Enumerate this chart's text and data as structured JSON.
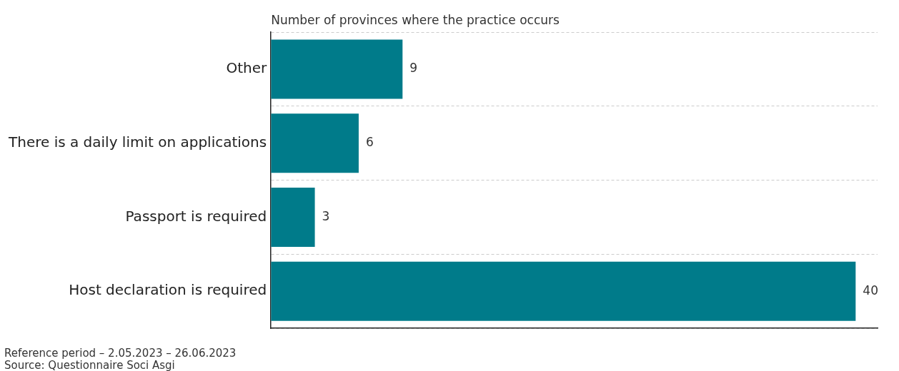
{
  "chart_data": {
    "type": "bar",
    "orientation": "horizontal",
    "title": "Number of provinces where the practice occurs",
    "categories": [
      "Other",
      "There is a daily limit on applications",
      "Passport is required",
      "Host declaration is required"
    ],
    "values": [
      9,
      6,
      3,
      40
    ],
    "color": "#007b8a",
    "xlim": [
      0,
      41.5
    ],
    "tick_labels": "y",
    "grid": "y",
    "data_labels": true,
    "annotations": [
      "Reference period – 2.05.2023 – 26.06.2023",
      "Source: Questionnaire Soci Asgi"
    ]
  }
}
